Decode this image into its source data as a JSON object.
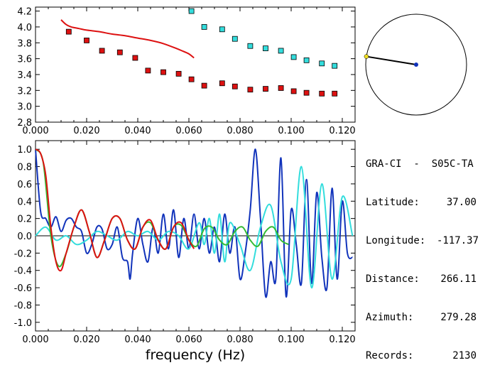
{
  "station": {
    "title": "GRA-CI  -  S05C-TA",
    "latitude_label": "Latitude:",
    "latitude": "37.00",
    "longitude_label": "Longitude:",
    "longitude": "-117.37",
    "distance_label": "Distance:",
    "distance": "266.11",
    "azimuth_label": "Azimuth:",
    "azimuth": "279.28",
    "records_label": "Records:",
    "records": "2130"
  },
  "compass": {
    "azimuth_deg": 279.28
  },
  "chart_data": [
    {
      "type": "scatter",
      "xlabel": "",
      "ylabel": "",
      "xlim": [
        0.0,
        0.125
      ],
      "ylim": [
        2.8,
        4.25
      ],
      "x_ticks": [
        "0.000",
        "0.020",
        "0.040",
        "0.060",
        "0.080",
        "0.100",
        "0.120"
      ],
      "y_ticks": [
        "2.8",
        "3.0",
        "3.2",
        "3.4",
        "3.6",
        "3.8",
        "4.0",
        "4.2"
      ],
      "series": [
        {
          "color": "#dd1111",
          "kind": "markers",
          "x": [
            0.013,
            0.02,
            0.026,
            0.033,
            0.039,
            0.044,
            0.05,
            0.056,
            0.061,
            0.066,
            0.073,
            0.078,
            0.084,
            0.09,
            0.096,
            0.101,
            0.106,
            0.112,
            0.117
          ],
          "y": [
            3.94,
            3.83,
            3.7,
            3.68,
            3.61,
            3.45,
            3.43,
            3.41,
            3.34,
            3.26,
            3.29,
            3.25,
            3.21,
            3.22,
            3.23,
            3.19,
            3.17,
            3.16,
            3.16
          ]
        },
        {
          "color": "#33dddd",
          "kind": "markers",
          "x": [
            0.061,
            0.066,
            0.073,
            0.078,
            0.084,
            0.09,
            0.096,
            0.101,
            0.106,
            0.112,
            0.117
          ],
          "y": [
            4.2,
            4.0,
            3.97,
            3.85,
            3.76,
            3.73,
            3.7,
            3.62,
            3.58,
            3.54,
            3.51
          ]
        },
        {
          "color": "#dd1111",
          "kind": "line",
          "x": [
            0.01,
            0.012,
            0.014,
            0.017,
            0.02,
            0.025,
            0.03,
            0.035,
            0.04,
            0.045,
            0.05,
            0.055,
            0.058,
            0.06,
            0.062
          ],
          "y": [
            4.09,
            4.03,
            4.0,
            3.98,
            3.96,
            3.94,
            3.91,
            3.89,
            3.86,
            3.83,
            3.79,
            3.73,
            3.69,
            3.66,
            3.61
          ]
        }
      ]
    },
    {
      "type": "line",
      "xlabel": "frequency (Hz)",
      "ylabel": "",
      "xlim": [
        0.0,
        0.125
      ],
      "ylim": [
        -1.1,
        1.1
      ],
      "x_ticks": [
        "0.000",
        "0.020",
        "0.040",
        "0.060",
        "0.080",
        "0.100",
        "0.120"
      ],
      "y_ticks": [
        "-1.0",
        "-0.8",
        "-0.6",
        "-0.4",
        "-0.2",
        "0.0",
        "0.2",
        "0.4",
        "0.6",
        "0.8",
        "1.0"
      ],
      "series": [
        {
          "color": "#1133bb",
          "x": [
            0.0,
            0.002,
            0.004,
            0.006,
            0.008,
            0.01,
            0.012,
            0.014,
            0.016,
            0.018,
            0.02,
            0.022,
            0.024,
            0.026,
            0.028,
            0.03,
            0.032,
            0.034,
            0.036,
            0.037,
            0.038,
            0.04,
            0.042,
            0.044,
            0.046,
            0.048,
            0.05,
            0.052,
            0.054,
            0.056,
            0.058,
            0.06,
            0.062,
            0.064,
            0.066,
            0.068,
            0.07,
            0.072,
            0.074,
            0.076,
            0.078,
            0.08,
            0.082,
            0.084,
            0.086,
            0.088,
            0.09,
            0.092,
            0.094,
            0.096,
            0.098,
            0.1,
            0.102,
            0.104,
            0.106,
            0.108,
            0.11,
            0.112,
            0.114,
            0.116,
            0.118,
            0.12,
            0.122,
            0.124
          ],
          "y": [
            1.0,
            0.28,
            0.2,
            0.1,
            0.22,
            0.05,
            0.18,
            0.2,
            0.1,
            0.05,
            -0.2,
            -0.1,
            0.1,
            0.08,
            -0.15,
            -0.1,
            0.1,
            -0.25,
            -0.3,
            -0.5,
            -0.2,
            0.2,
            -0.1,
            -0.3,
            0.1,
            -0.2,
            0.25,
            -0.15,
            0.3,
            -0.25,
            0.2,
            -0.15,
            0.25,
            -0.15,
            0.2,
            -0.2,
            0.1,
            -0.3,
            0.25,
            -0.2,
            0.1,
            -0.5,
            -0.2,
            0.3,
            1.0,
            0.2,
            -0.7,
            -0.3,
            -0.5,
            0.9,
            -0.7,
            0.3,
            -0.1,
            -0.55,
            0.65,
            -0.55,
            0.5,
            -0.25,
            -0.6,
            0.55,
            -0.5,
            0.4,
            -0.2,
            -0.25
          ]
        },
        {
          "color": "#33dddd",
          "x": [
            0.0,
            0.004,
            0.008,
            0.012,
            0.016,
            0.02,
            0.024,
            0.028,
            0.032,
            0.036,
            0.04,
            0.044,
            0.048,
            0.052,
            0.056,
            0.06,
            0.064,
            0.066,
            0.068,
            0.07,
            0.072,
            0.074,
            0.076,
            0.08,
            0.084,
            0.088,
            0.092,
            0.096,
            0.1,
            0.104,
            0.108,
            0.112,
            0.116,
            0.12,
            0.124
          ],
          "y": [
            0.0,
            0.1,
            -0.05,
            0.0,
            -0.1,
            -0.05,
            0.05,
            0.0,
            -0.05,
            0.05,
            0.0,
            0.05,
            -0.05,
            0.05,
            0.0,
            -0.15,
            0.15,
            -0.1,
            0.2,
            -0.2,
            0.25,
            -0.3,
            0.15,
            -0.1,
            -0.4,
            0.1,
            0.35,
            -0.3,
            -0.5,
            0.8,
            -0.6,
            0.6,
            -0.5,
            0.45,
            0.0
          ]
        },
        {
          "color": "#33bb33",
          "x": [
            0.0,
            0.003,
            0.006,
            0.009,
            0.012,
            0.015,
            0.018,
            0.021,
            0.024,
            0.027,
            0.03,
            0.033,
            0.036,
            0.039,
            0.042,
            0.045,
            0.048,
            0.051,
            0.054,
            0.057,
            0.06,
            0.063,
            0.066,
            0.069,
            0.072,
            0.075,
            0.078,
            0.081,
            0.084,
            0.087,
            0.09,
            0.093,
            0.096,
            0.099
          ],
          "y": [
            1.0,
            0.85,
            0.0,
            -0.35,
            -0.2,
            0.1,
            0.3,
            0.05,
            -0.25,
            -0.05,
            0.2,
            0.2,
            -0.05,
            -0.15,
            0.1,
            0.15,
            -0.05,
            -0.15,
            0.1,
            0.12,
            -0.05,
            -0.12,
            0.08,
            0.1,
            -0.05,
            -0.1,
            0.05,
            0.1,
            -0.05,
            -0.12,
            0.05,
            0.1,
            -0.05,
            -0.1
          ]
        },
        {
          "color": "#dd1111",
          "x": [
            0.0,
            0.002,
            0.004,
            0.006,
            0.008,
            0.01,
            0.012,
            0.015,
            0.018,
            0.021,
            0.024,
            0.027,
            0.03,
            0.033,
            0.036,
            0.039,
            0.042,
            0.045,
            0.048,
            0.051,
            0.054,
            0.057,
            0.06,
            0.062
          ],
          "y": [
            1.0,
            0.95,
            0.7,
            0.1,
            -0.3,
            -0.4,
            -0.2,
            0.1,
            0.3,
            0.05,
            -0.25,
            -0.05,
            0.2,
            0.2,
            -0.05,
            -0.15,
            0.1,
            0.18,
            -0.05,
            -0.15,
            0.1,
            0.15,
            -0.05,
            -0.15
          ]
        }
      ]
    }
  ]
}
